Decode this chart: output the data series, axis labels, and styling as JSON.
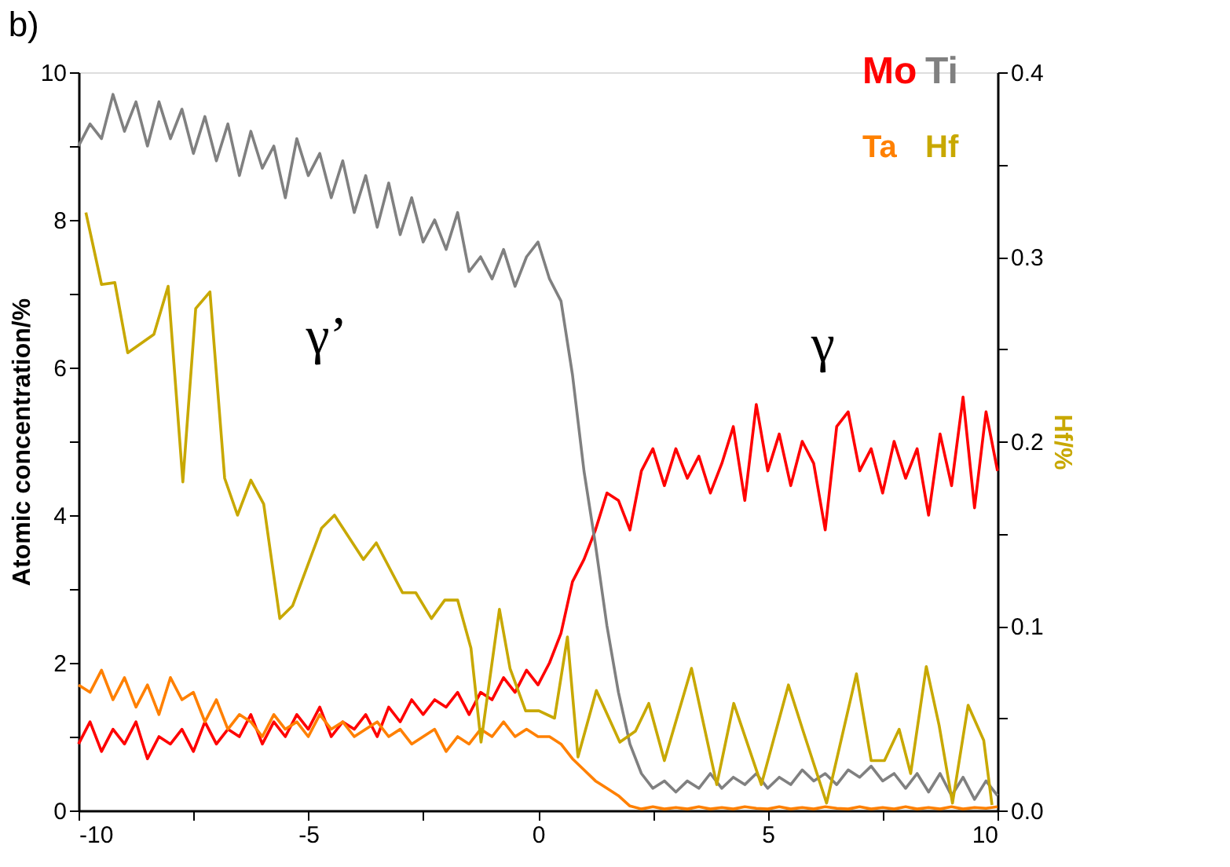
{
  "chart_data": {
    "type": "line",
    "title": "b)",
    "ylabel": "Atomic concentration/%",
    "y2label": "Hf/%",
    "x": [
      -10,
      -9.75,
      -9.5,
      -9.25,
      -9,
      -8.75,
      -8.5,
      -8.25,
      -8,
      -7.75,
      -7.5,
      -7.25,
      -7,
      -6.75,
      -6.5,
      -6.25,
      -6,
      -5.75,
      -5.5,
      -5.25,
      -5,
      -4.75,
      -4.5,
      -4.25,
      -4,
      -3.75,
      -3.5,
      -3.25,
      -3,
      -2.75,
      -2.5,
      -2.25,
      -2,
      -1.75,
      -1.5,
      -1.25,
      -1,
      -0.75,
      -0.5,
      -0.25,
      0,
      0.25,
      0.5,
      0.75,
      1,
      1.25,
      1.5,
      1.75,
      2,
      2.25,
      2.5,
      2.75,
      3,
      3.25,
      3.5,
      3.75,
      4,
      4.25,
      4.5,
      4.75,
      5,
      5.25,
      5.5,
      5.75,
      6,
      6.25,
      6.5,
      6.75,
      7,
      7.25,
      7.5,
      7.75,
      8,
      8.25,
      8.5,
      8.75,
      9,
      9.25,
      9.5,
      9.75,
      10
    ],
    "series": [
      {
        "name": "Mo",
        "color": "#ff0000",
        "values": [
          0.9,
          1.2,
          0.8,
          1.1,
          0.9,
          1.2,
          0.7,
          1.0,
          0.9,
          1.1,
          0.8,
          1.2,
          0.9,
          1.1,
          1.0,
          1.3,
          0.9,
          1.2,
          1.0,
          1.3,
          1.1,
          1.4,
          1.0,
          1.2,
          1.1,
          1.3,
          1.0,
          1.4,
          1.2,
          1.5,
          1.3,
          1.5,
          1.4,
          1.6,
          1.3,
          1.6,
          1.5,
          1.8,
          1.6,
          1.9,
          1.7,
          2.0,
          2.4,
          3.1,
          3.4,
          3.8,
          4.3,
          4.2,
          3.8,
          4.6,
          4.9,
          4.4,
          4.9,
          4.5,
          4.8,
          4.3,
          4.7,
          5.2,
          4.2,
          5.5,
          4.6,
          5.1,
          4.4,
          5.0,
          4.7,
          3.8,
          5.2,
          5.4,
          4.6,
          4.9,
          4.3,
          5.0,
          4.5,
          4.9,
          4.0,
          5.1,
          4.4,
          5.6,
          4.1,
          5.4,
          4.6
        ]
      },
      {
        "name": "Ti",
        "color": "#808080",
        "values": [
          9.0,
          9.3,
          9.1,
          9.7,
          9.2,
          9.6,
          9.0,
          9.6,
          9.1,
          9.5,
          8.9,
          9.4,
          8.8,
          9.3,
          8.6,
          9.2,
          8.7,
          9.0,
          8.3,
          9.1,
          8.6,
          8.9,
          8.3,
          8.8,
          8.1,
          8.6,
          7.9,
          8.5,
          7.8,
          8.3,
          7.7,
          8.0,
          7.6,
          8.1,
          7.3,
          7.5,
          7.2,
          7.6,
          7.1,
          7.5,
          7.7,
          7.2,
          6.9,
          5.9,
          4.6,
          3.6,
          2.5,
          1.6,
          0.9,
          0.5,
          0.3,
          0.4,
          0.25,
          0.4,
          0.3,
          0.5,
          0.3,
          0.45,
          0.35,
          0.5,
          0.3,
          0.45,
          0.35,
          0.55,
          0.4,
          0.5,
          0.35,
          0.55,
          0.45,
          0.6,
          0.4,
          0.5,
          0.3,
          0.5,
          0.25,
          0.5,
          0.2,
          0.45,
          0.15,
          0.4,
          0.2
        ]
      },
      {
        "name": "Ta",
        "color": "#ff8000",
        "values": [
          1.7,
          1.6,
          1.9,
          1.5,
          1.8,
          1.4,
          1.7,
          1.3,
          1.8,
          1.5,
          1.6,
          1.2,
          1.5,
          1.1,
          1.3,
          1.2,
          1.0,
          1.3,
          1.1,
          1.2,
          1.0,
          1.3,
          1.1,
          1.2,
          1.0,
          1.1,
          1.2,
          1.0,
          1.1,
          0.9,
          1.0,
          1.1,
          0.8,
          1.0,
          0.9,
          1.1,
          1.0,
          1.2,
          1.0,
          1.1,
          1.0,
          1.0,
          0.9,
          0.7,
          0.55,
          0.4,
          0.3,
          0.2,
          0.06,
          0.02,
          0.05,
          0.02,
          0.04,
          0.02,
          0.05,
          0.02,
          0.04,
          0.02,
          0.05,
          0.03,
          0.02,
          0.05,
          0.02,
          0.04,
          0.02,
          0.05,
          0.03,
          0.02,
          0.05,
          0.02,
          0.04,
          0.02,
          0.05,
          0.02,
          0.04,
          0.02,
          0.05,
          0.02,
          0.04,
          0.03,
          0.05
        ]
      },
      {
        "name": "Hf",
        "color": "#c8a800",
        "axis": "y2",
        "x": [
          -9.84,
          -9.5,
          -9.21,
          -8.93,
          -8.36,
          -8.05,
          -7.73,
          -7.45,
          -7.14,
          -6.82,
          -6.54,
          -6.25,
          -5.97,
          -5.62,
          -5.34,
          -4.71,
          -4.43,
          -3.8,
          -3.52,
          -2.95,
          -2.66,
          -2.32,
          -2.03,
          -1.75,
          -1.46,
          -1.24,
          -0.84,
          -0.61,
          -0.27,
          0.02,
          0.36,
          0.64,
          0.87,
          1.27,
          1.78,
          2.12,
          2.41,
          2.75,
          3.34,
          3.89,
          4.26,
          4.86,
          5.45,
          5.77,
          6.28,
          6.93,
          7.25,
          7.54,
          7.86,
          8.11,
          8.45,
          8.73,
          9.02,
          9.36,
          9.7,
          9.88
        ],
        "values": [
          0.324,
          0.285,
          0.286,
          0.248,
          0.258,
          0.284,
          0.178,
          0.272,
          0.281,
          0.18,
          0.16,
          0.179,
          0.166,
          0.104,
          0.111,
          0.153,
          0.16,
          0.136,
          0.145,
          0.118,
          0.118,
          0.104,
          0.114,
          0.114,
          0.088,
          0.037,
          0.109,
          0.077,
          0.054,
          0.054,
          0.05,
          0.094,
          0.029,
          0.065,
          0.037,
          0.043,
          0.058,
          0.027,
          0.077,
          0.014,
          0.058,
          0.014,
          0.068,
          0.043,
          0.004,
          0.074,
          0.027,
          0.027,
          0.044,
          0.02,
          0.078,
          0.046,
          0.004,
          0.057,
          0.038,
          0.003
        ]
      }
    ],
    "xlim": [
      -10,
      10
    ],
    "xticks": [
      -10,
      {
        "value": -7.5,
        "label": null
      },
      -5,
      {
        "value": -2.5,
        "label": null
      },
      0,
      {
        "value": 2.5,
        "label": null
      },
      5,
      {
        "value": 7.5,
        "label": null
      },
      10
    ],
    "ylim": [
      0,
      10
    ],
    "yticks": [
      0,
      {
        "value": 1,
        "label": null
      },
      2,
      {
        "value": 3,
        "label": null
      },
      4,
      {
        "value": 5,
        "label": null
      },
      6,
      {
        "value": 7,
        "label": null
      },
      8,
      {
        "value": 9,
        "label": null
      },
      10
    ],
    "y2lim": [
      0,
      0.4
    ],
    "y2ticks": [
      {
        "value": 0,
        "label": "0.0"
      },
      {
        "value": 0.05,
        "label": null
      },
      {
        "value": 0.1,
        "label": "0.1"
      },
      {
        "value": 0.15,
        "label": null
      },
      {
        "value": 0.2,
        "label": "0.2"
      },
      {
        "value": 0.25,
        "label": null
      },
      {
        "value": 0.3,
        "label": "0.3"
      },
      {
        "value": 0.35,
        "label": null
      },
      {
        "value": 0.4,
        "label": "0.4"
      }
    ],
    "annotations": [
      "γ’",
      "γ"
    ],
    "legend": "top right",
    "grid": false,
    "marker": "none",
    "line_style": "solid"
  }
}
